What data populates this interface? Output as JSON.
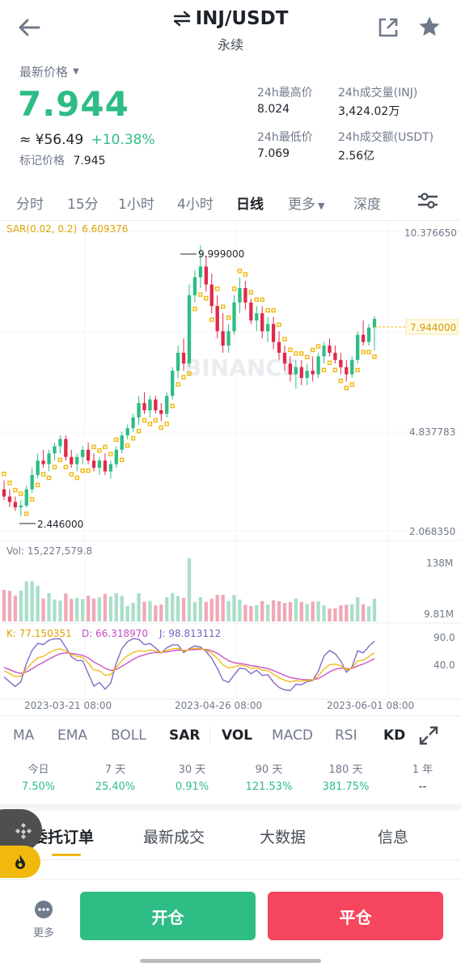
{
  "header": {
    "pair": "INJ/USDT",
    "subtitle": "永续",
    "back_icon": "back-arrow-icon",
    "swap_icon": "swap-icon",
    "share_icon": "share-icon",
    "star_icon": "star-icon"
  },
  "price": {
    "label": "最新价格",
    "last": "7.944",
    "cny": "≈ ¥56.49",
    "change": "+10.38%",
    "mark_label": "标记价格",
    "mark_value": "7.945"
  },
  "stats": {
    "high_label": "24h最高价",
    "high_value": "8.024",
    "vol_label": "24h成交量(INJ)",
    "vol_value": "3,424.02万",
    "low_label": "24h最低价",
    "low_value": "7.069",
    "turnover_label": "24h成交额(USDT)",
    "turnover_value": "2.56亿"
  },
  "timeframes": [
    "分时",
    "15分",
    "1小时",
    "4小时",
    "日线",
    "更多",
    "深度"
  ],
  "chart": {
    "sar_label": "SAR(0.02, 0.2)",
    "sar_value": "6.609376",
    "y_top": "10.376650",
    "y_mid": "4.837783",
    "y_bottom": "2.068350",
    "high_label": "9.999000",
    "low_label": "2.446000",
    "last_price": "7.944000",
    "watermark": "BINANCE",
    "vol_label": "Vol: 15,227,579.8",
    "vol_top": "138M",
    "vol_bottom": "9.81M",
    "kdj_k": "K: 77.150351",
    "kdj_d": "D: 66.318970",
    "kdj_j": "J: 98.813112",
    "kdj_top": "90.0",
    "kdj_mid": "40.0",
    "dates": [
      "2023-03-21 08:00",
      "2023-04-26 08:00",
      "2023-06-01 08:00"
    ],
    "colors": {
      "up": "#2ebd85",
      "down": "#e0294a",
      "sar": "#f0b90b",
      "k": "#f0b90b",
      "d": "#c74ac1",
      "j": "#7b5fc4"
    }
  },
  "chart_data": {
    "type": "candlestick",
    "period": "1D",
    "candles": [
      {
        "x": 0,
        "o": 3.2,
        "h": 3.45,
        "l": 2.9,
        "c": 3.0
      },
      {
        "x": 1,
        "o": 3.0,
        "h": 3.2,
        "l": 2.7,
        "c": 2.85
      },
      {
        "x": 2,
        "o": 2.85,
        "h": 3.0,
        "l": 2.6,
        "c": 2.7
      },
      {
        "x": 3,
        "o": 2.7,
        "h": 2.9,
        "l": 2.446,
        "c": 2.75
      },
      {
        "x": 4,
        "o": 2.75,
        "h": 3.3,
        "l": 2.7,
        "c": 3.2
      },
      {
        "x": 5,
        "o": 3.2,
        "h": 3.8,
        "l": 3.1,
        "c": 3.6
      },
      {
        "x": 6,
        "o": 3.6,
        "h": 4.2,
        "l": 3.5,
        "c": 4.0
      },
      {
        "x": 7,
        "o": 4.0,
        "h": 4.3,
        "l": 3.8,
        "c": 3.9
      },
      {
        "x": 8,
        "o": 3.9,
        "h": 4.3,
        "l": 3.7,
        "c": 4.2
      },
      {
        "x": 9,
        "o": 4.2,
        "h": 4.5,
        "l": 4.0,
        "c": 4.4
      },
      {
        "x": 10,
        "o": 4.4,
        "h": 4.7,
        "l": 4.2,
        "c": 4.6
      },
      {
        "x": 11,
        "o": 4.6,
        "h": 4.7,
        "l": 4.0,
        "c": 4.1
      },
      {
        "x": 12,
        "o": 4.1,
        "h": 4.3,
        "l": 3.8,
        "c": 3.9
      },
      {
        "x": 13,
        "o": 3.9,
        "h": 4.2,
        "l": 3.7,
        "c": 4.1
      },
      {
        "x": 14,
        "o": 4.1,
        "h": 4.4,
        "l": 3.9,
        "c": 4.3
      },
      {
        "x": 15,
        "o": 4.3,
        "h": 4.5,
        "l": 3.9,
        "c": 4.0
      },
      {
        "x": 16,
        "o": 4.0,
        "h": 4.2,
        "l": 3.7,
        "c": 3.8
      },
      {
        "x": 17,
        "o": 3.8,
        "h": 4.1,
        "l": 3.6,
        "c": 4.0
      },
      {
        "x": 18,
        "o": 4.0,
        "h": 4.2,
        "l": 3.6,
        "c": 3.7
      },
      {
        "x": 19,
        "o": 3.7,
        "h": 4.0,
        "l": 3.5,
        "c": 3.9
      },
      {
        "x": 20,
        "o": 3.9,
        "h": 4.4,
        "l": 3.8,
        "c": 4.3
      },
      {
        "x": 21,
        "o": 4.3,
        "h": 4.8,
        "l": 4.2,
        "c": 4.7
      },
      {
        "x": 22,
        "o": 4.7,
        "h": 5.0,
        "l": 4.6,
        "c": 4.9
      },
      {
        "x": 23,
        "o": 4.9,
        "h": 5.3,
        "l": 4.8,
        "c": 5.2
      },
      {
        "x": 24,
        "o": 5.2,
        "h": 5.8,
        "l": 5.0,
        "c": 5.6
      },
      {
        "x": 25,
        "o": 5.6,
        "h": 5.9,
        "l": 5.3,
        "c": 5.4
      },
      {
        "x": 26,
        "o": 5.4,
        "h": 5.8,
        "l": 5.2,
        "c": 5.7
      },
      {
        "x": 27,
        "o": 5.7,
        "h": 5.8,
        "l": 5.3,
        "c": 5.4
      },
      {
        "x": 28,
        "o": 5.4,
        "h": 5.6,
        "l": 5.1,
        "c": 5.3
      },
      {
        "x": 29,
        "o": 5.3,
        "h": 5.9,
        "l": 5.2,
        "c": 5.8
      },
      {
        "x": 30,
        "o": 5.8,
        "h": 6.6,
        "l": 5.7,
        "c": 6.5
      },
      {
        "x": 31,
        "o": 6.5,
        "h": 7.2,
        "l": 6.3,
        "c": 7.0
      },
      {
        "x": 32,
        "o": 7.0,
        "h": 7.4,
        "l": 6.5,
        "c": 6.7
      },
      {
        "x": 33,
        "o": 6.7,
        "h": 8.9,
        "l": 6.6,
        "c": 8.6
      },
      {
        "x": 34,
        "o": 8.6,
        "h": 9.3,
        "l": 8.4,
        "c": 9.1
      },
      {
        "x": 35,
        "o": 9.1,
        "h": 9.999,
        "l": 8.8,
        "c": 9.4
      },
      {
        "x": 36,
        "o": 9.4,
        "h": 9.7,
        "l": 8.7,
        "c": 8.9
      },
      {
        "x": 37,
        "o": 8.9,
        "h": 9.2,
        "l": 8.1,
        "c": 8.3
      },
      {
        "x": 38,
        "o": 8.3,
        "h": 8.6,
        "l": 7.4,
        "c": 7.6
      },
      {
        "x": 39,
        "o": 7.6,
        "h": 8.1,
        "l": 7.0,
        "c": 7.2
      },
      {
        "x": 40,
        "o": 7.2,
        "h": 7.8,
        "l": 7.0,
        "c": 7.6
      },
      {
        "x": 41,
        "o": 7.6,
        "h": 8.6,
        "l": 7.5,
        "c": 8.4
      },
      {
        "x": 42,
        "o": 8.4,
        "h": 9.1,
        "l": 8.1,
        "c": 8.8
      },
      {
        "x": 43,
        "o": 8.8,
        "h": 9.0,
        "l": 8.2,
        "c": 8.4
      },
      {
        "x": 44,
        "o": 8.4,
        "h": 8.5,
        "l": 7.8,
        "c": 7.9
      },
      {
        "x": 45,
        "o": 7.9,
        "h": 8.3,
        "l": 7.6,
        "c": 8.1
      },
      {
        "x": 46,
        "o": 8.1,
        "h": 8.3,
        "l": 7.4,
        "c": 7.6
      },
      {
        "x": 47,
        "o": 7.6,
        "h": 8.0,
        "l": 7.3,
        "c": 7.8
      },
      {
        "x": 48,
        "o": 7.8,
        "h": 8.0,
        "l": 7.1,
        "c": 7.3
      },
      {
        "x": 49,
        "o": 7.3,
        "h": 7.6,
        "l": 6.8,
        "c": 7.0
      },
      {
        "x": 50,
        "o": 7.0,
        "h": 7.2,
        "l": 6.5,
        "c": 6.7
      },
      {
        "x": 51,
        "o": 6.7,
        "h": 6.9,
        "l": 6.2,
        "c": 6.4
      },
      {
        "x": 52,
        "o": 6.4,
        "h": 6.8,
        "l": 6.0,
        "c": 6.6
      },
      {
        "x": 53,
        "o": 6.6,
        "h": 6.8,
        "l": 6.1,
        "c": 6.3
      },
      {
        "x": 54,
        "o": 6.3,
        "h": 6.7,
        "l": 6.1,
        "c": 6.5
      },
      {
        "x": 55,
        "o": 6.5,
        "h": 6.9,
        "l": 6.2,
        "c": 6.4
      },
      {
        "x": 56,
        "o": 6.4,
        "h": 7.0,
        "l": 6.3,
        "c": 6.9
      },
      {
        "x": 57,
        "o": 6.9,
        "h": 7.3,
        "l": 6.7,
        "c": 7.2
      },
      {
        "x": 58,
        "o": 7.2,
        "h": 7.4,
        "l": 6.9,
        "c": 7.0
      },
      {
        "x": 59,
        "o": 7.0,
        "h": 7.2,
        "l": 6.7,
        "c": 6.8
      },
      {
        "x": 60,
        "o": 6.8,
        "h": 7.0,
        "l": 6.4,
        "c": 6.6
      },
      {
        "x": 61,
        "o": 6.6,
        "h": 6.8,
        "l": 6.2,
        "c": 6.4
      },
      {
        "x": 62,
        "o": 6.4,
        "h": 6.9,
        "l": 6.3,
        "c": 6.8
      },
      {
        "x": 63,
        "o": 6.8,
        "h": 7.6,
        "l": 6.7,
        "c": 7.5
      },
      {
        "x": 64,
        "o": 7.5,
        "h": 7.9,
        "l": 7.2,
        "c": 7.3
      },
      {
        "x": 65,
        "o": 7.3,
        "h": 7.8,
        "l": 7.2,
        "c": 7.7
      },
      {
        "x": 66,
        "o": 7.7,
        "h": 8.024,
        "l": 7.069,
        "c": 7.944
      }
    ],
    "ylim": [
      2.06835,
      10.37665
    ]
  },
  "indicators": [
    "MA",
    "EMA",
    "BOLL",
    "SAR",
    "VOL",
    "MACD",
    "RSI",
    "KD"
  ],
  "performance": [
    {
      "label": "今日",
      "value": "7.50%"
    },
    {
      "label": "7 天",
      "value": "25.40%"
    },
    {
      "label": "30 天",
      "value": "0.91%"
    },
    {
      "label": "90 天",
      "value": "121.53%"
    },
    {
      "label": "180 天",
      "value": "381.75%"
    },
    {
      "label": "1 年",
      "value": "--"
    }
  ],
  "tabs": [
    "委托订单",
    "最新成交",
    "大数据",
    "信息"
  ],
  "bottom": {
    "more_label": "更多",
    "open_label": "开仓",
    "close_label": "平仓"
  }
}
